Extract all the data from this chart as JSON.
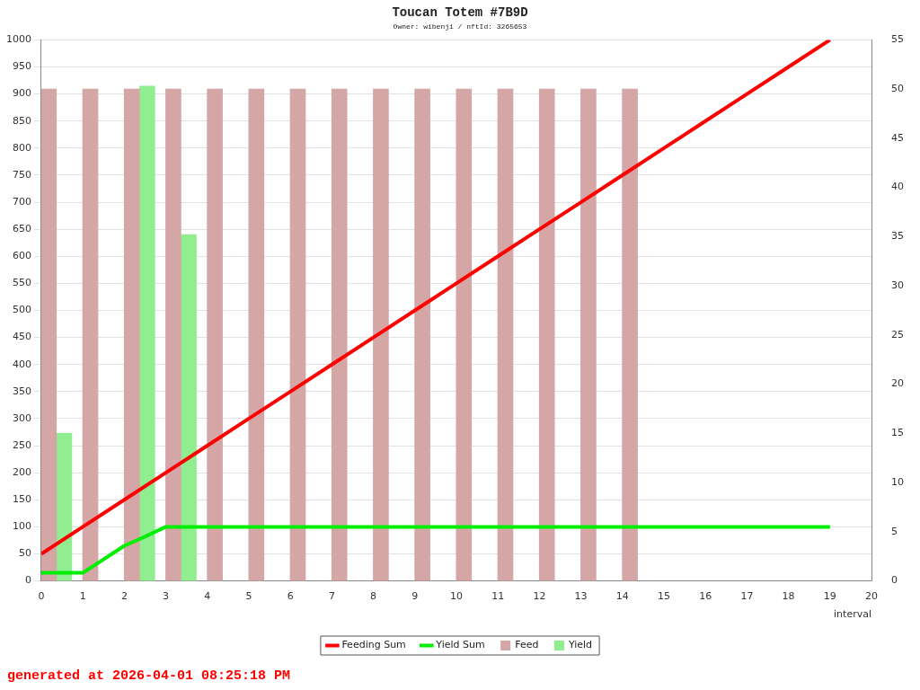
{
  "chart_data": {
    "type": "bar",
    "title": "Toucan Totem #7B9D",
    "subtitle": "Owner: wibenji / nftId: 3265653",
    "xlabel": "interval",
    "xlim": [
      0,
      20
    ],
    "xticks": [
      0,
      1,
      2,
      3,
      4,
      5,
      6,
      7,
      8,
      9,
      10,
      11,
      12,
      13,
      14,
      15,
      16,
      17,
      18,
      19,
      20
    ],
    "ylim": [
      0,
      1000
    ],
    "yticks": [
      0,
      50,
      100,
      150,
      200,
      250,
      300,
      350,
      400,
      450,
      500,
      550,
      600,
      650,
      700,
      750,
      800,
      850,
      900,
      950,
      1000
    ],
    "y2lim": [
      0,
      55
    ],
    "y2ticks": [
      0,
      5,
      10,
      15,
      20,
      25,
      30,
      35,
      40,
      45,
      50,
      55
    ],
    "grid": "y",
    "legend": "bottom",
    "annotations": [
      "generated at 2026-04-01 08:25:18 PM"
    ],
    "series": [
      {
        "name": "Feeding Sum",
        "type": "line",
        "color": "#ff0000",
        "x": [
          0,
          1,
          2,
          3,
          4,
          5,
          6,
          7,
          8,
          9,
          10,
          11,
          12,
          13,
          14,
          15,
          16,
          17,
          18,
          19
        ],
        "values": [
          50,
          100,
          150,
          200,
          250,
          300,
          350,
          400,
          450,
          500,
          550,
          600,
          650,
          700,
          750,
          800,
          850,
          900,
          950,
          1000
        ]
      },
      {
        "name": "Yield Sum",
        "type": "line",
        "color": "#00ee00",
        "x": [
          0,
          1,
          2,
          2.5,
          3,
          19
        ],
        "values": [
          15,
          15,
          65,
          82,
          100,
          100
        ]
      },
      {
        "name": "Feed",
        "axis": "y2",
        "color": "#d4a6a6",
        "x": [
          0.18,
          1.18,
          2.18,
          3.18,
          4.18,
          5.18,
          6.18,
          7.18,
          8.18,
          9.18,
          10.18,
          11.18,
          12.18,
          13.18,
          14.18
        ],
        "values": [
          50,
          50,
          50,
          50,
          50,
          50,
          50,
          50,
          50,
          50,
          50,
          50,
          50,
          50,
          50
        ]
      },
      {
        "name": "Yield",
        "axis": "y2",
        "color": "#90ee90",
        "x": [
          0.55,
          2.55,
          3.55
        ],
        "values": [
          15,
          50.3,
          35.2
        ]
      }
    ]
  }
}
